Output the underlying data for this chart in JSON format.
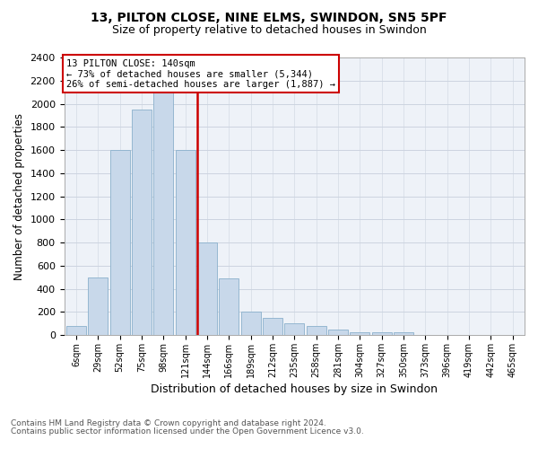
{
  "title1": "13, PILTON CLOSE, NINE ELMS, SWINDON, SN5 5PF",
  "title2": "Size of property relative to detached houses in Swindon",
  "xlabel": "Distribution of detached houses by size in Swindon",
  "ylabel": "Number of detached properties",
  "footnote1": "Contains HM Land Registry data © Crown copyright and database right 2024.",
  "footnote2": "Contains public sector information licensed under the Open Government Licence v3.0.",
  "annotation_title": "13 PILTON CLOSE: 140sqm",
  "annotation_line1": "← 73% of detached houses are smaller (5,344)",
  "annotation_line2": "26% of semi-detached houses are larger (1,887) →",
  "bar_color": "#c8d8ea",
  "bar_edge_color": "#8ab0cc",
  "vline_color": "#cc0000",
  "grid_color": "#ccd4e0",
  "bg_color": "#eef2f8",
  "categories": [
    "6sqm",
    "29sqm",
    "52sqm",
    "75sqm",
    "98sqm",
    "121sqm",
    "144sqm",
    "166sqm",
    "189sqm",
    "212sqm",
    "235sqm",
    "258sqm",
    "281sqm",
    "304sqm",
    "327sqm",
    "350sqm",
    "373sqm",
    "396sqm",
    "419sqm",
    "442sqm",
    "465sqm"
  ],
  "values": [
    75,
    500,
    1600,
    1950,
    2100,
    1600,
    800,
    490,
    200,
    150,
    100,
    75,
    50,
    25,
    25,
    25,
    0,
    0,
    0,
    0,
    0
  ],
  "vline_index": 6,
  "ylim": [
    0,
    2400
  ],
  "yticks": [
    0,
    200,
    400,
    600,
    800,
    1000,
    1200,
    1400,
    1600,
    1800,
    2000,
    2200,
    2400
  ],
  "figwidth": 6.0,
  "figheight": 5.0,
  "dpi": 100
}
